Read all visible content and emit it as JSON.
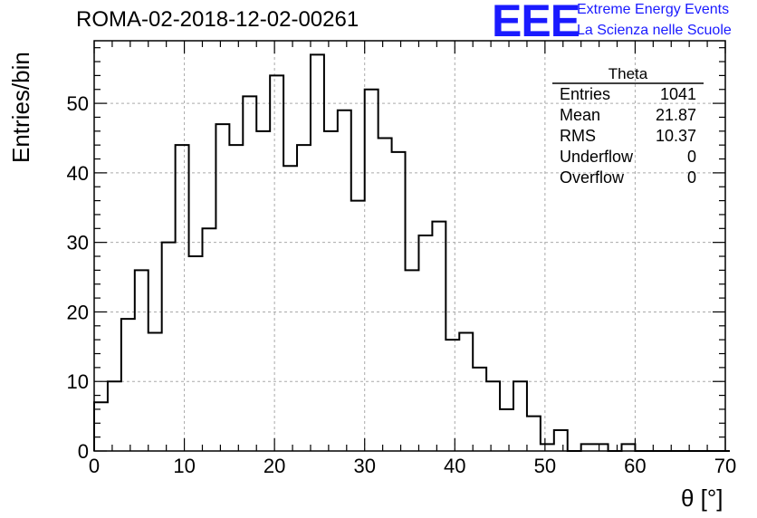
{
  "header": {
    "run_title": "ROMA-02-2018-12-02-00261",
    "logo_mark": "EEE",
    "logo_line1": "Extreme Energy Events",
    "logo_line2": "La Scienza nelle Scuole"
  },
  "stats": {
    "title": "Theta",
    "rows": [
      {
        "label": "Entries",
        "value": "1041"
      },
      {
        "label": "Mean",
        "value": "21.87"
      },
      {
        "label": "RMS",
        "value": "10.37"
      },
      {
        "label": "Underflow",
        "value": "0"
      },
      {
        "label": "Overflow",
        "value": "0"
      }
    ]
  },
  "chart_data": {
    "type": "bar",
    "histogram": true,
    "title": "ROMA-02-2018-12-02-00261",
    "xlabel": "θ [°]",
    "ylabel": "Entries/bin",
    "xlim": [
      0,
      70
    ],
    "ylim": [
      0,
      59
    ],
    "grid": true,
    "bin_width": 1.5,
    "bin_start": 0,
    "values": [
      7,
      10,
      19,
      26,
      17,
      30,
      44,
      28,
      32,
      47,
      44,
      51,
      46,
      54,
      41,
      44,
      57,
      46,
      49,
      36,
      52,
      45,
      43,
      26,
      31,
      33,
      16,
      17,
      12,
      10,
      6,
      10,
      5,
      1,
      3,
      0,
      1,
      1,
      0,
      1,
      0,
      0,
      0,
      0,
      0,
      0,
      0
    ],
    "xticks": [
      0,
      10,
      20,
      30,
      40,
      50,
      60,
      70
    ],
    "yticks": [
      0,
      10,
      20,
      30,
      40,
      50
    ]
  }
}
